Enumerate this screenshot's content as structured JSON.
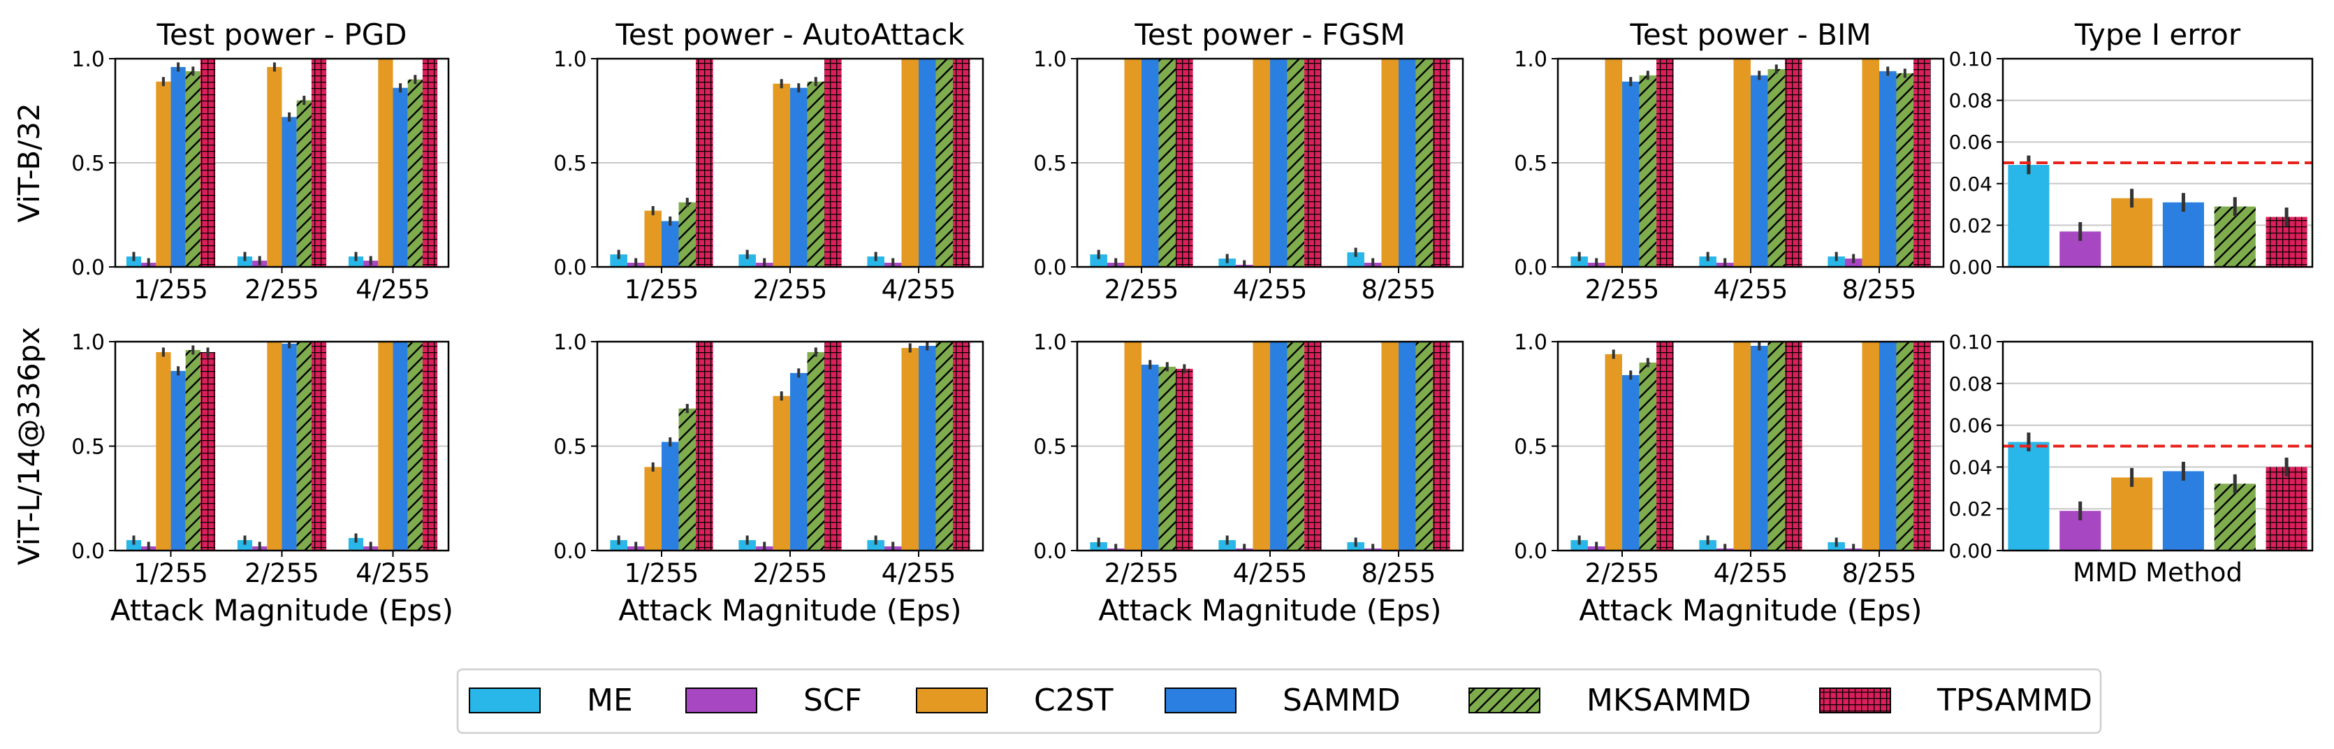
{
  "colors": {
    "ME": "#29B6E8",
    "SCF": "#A847C2",
    "C2ST": "#E49A22",
    "SAMMD": "#2B7FE0",
    "MKSAMMD": "#7FAD4E",
    "TPSAMMD": "#DB1F5A",
    "threshold": "#E8221C",
    "grid": "#c8c8c8"
  },
  "legend": {
    "items": [
      {
        "label": "ME",
        "hatch": "none"
      },
      {
        "label": "SCF",
        "hatch": "none"
      },
      {
        "label": "C2ST",
        "hatch": "none"
      },
      {
        "label": "SAMMD",
        "hatch": "none"
      },
      {
        "label": "MKSAMMD",
        "hatch": "diag"
      },
      {
        "label": "TPSAMMD",
        "hatch": "grid"
      }
    ]
  },
  "row_labels": [
    "ViT-B/32",
    "ViT-L/14@336px"
  ],
  "chart_data": [
    {
      "type": "bar",
      "title": "Test power - PGD",
      "xlabel": "Attack Magnitude (Eps)",
      "ylabel": "ViT-B/32",
      "ylim": [
        0,
        1
      ],
      "yticks": [
        "0.0",
        "0.5",
        "1.0"
      ],
      "categories": [
        "1/255",
        "2/255",
        "4/255"
      ],
      "series": [
        {
          "name": "ME",
          "values": [
            0.05,
            0.05,
            0.05
          ]
        },
        {
          "name": "SCF",
          "values": [
            0.02,
            0.03,
            0.03
          ]
        },
        {
          "name": "C2ST",
          "values": [
            0.89,
            0.96,
            1.0
          ]
        },
        {
          "name": "SAMMD",
          "values": [
            0.96,
            0.72,
            0.86
          ]
        },
        {
          "name": "MKSAMMD",
          "values": [
            0.94,
            0.8,
            0.9
          ]
        },
        {
          "name": "TPSAMMD",
          "values": [
            1.0,
            1.0,
            1.0
          ]
        }
      ]
    },
    {
      "type": "bar",
      "title": "Test power - AutoAttack",
      "xlabel": "Attack Magnitude (Eps)",
      "ylabel": "ViT-B/32",
      "ylim": [
        0,
        1
      ],
      "yticks": [
        "0.0",
        "0.5",
        "1.0"
      ],
      "categories": [
        "1/255",
        "2/255",
        "4/255"
      ],
      "series": [
        {
          "name": "ME",
          "values": [
            0.06,
            0.06,
            0.05
          ]
        },
        {
          "name": "SCF",
          "values": [
            0.02,
            0.02,
            0.02
          ]
        },
        {
          "name": "C2ST",
          "values": [
            0.27,
            0.88,
            1.0
          ]
        },
        {
          "name": "SAMMD",
          "values": [
            0.22,
            0.86,
            1.0
          ]
        },
        {
          "name": "MKSAMMD",
          "values": [
            0.31,
            0.89,
            1.0
          ]
        },
        {
          "name": "TPSAMMD",
          "values": [
            1.0,
            1.0,
            1.0
          ]
        }
      ]
    },
    {
      "type": "bar",
      "title": "Test power - FGSM",
      "xlabel": "Attack Magnitude (Eps)",
      "ylabel": "ViT-B/32",
      "ylim": [
        0,
        1
      ],
      "yticks": [
        "0.0",
        "0.5",
        "1.0"
      ],
      "categories": [
        "2/255",
        "4/255",
        "8/255"
      ],
      "series": [
        {
          "name": "ME",
          "values": [
            0.06,
            0.04,
            0.07
          ]
        },
        {
          "name": "SCF",
          "values": [
            0.02,
            0.01,
            0.02
          ]
        },
        {
          "name": "C2ST",
          "values": [
            1.0,
            1.0,
            1.0
          ]
        },
        {
          "name": "SAMMD",
          "values": [
            1.0,
            1.0,
            1.0
          ]
        },
        {
          "name": "MKSAMMD",
          "values": [
            1.0,
            1.0,
            1.0
          ]
        },
        {
          "name": "TPSAMMD",
          "values": [
            1.0,
            1.0,
            1.0
          ]
        }
      ]
    },
    {
      "type": "bar",
      "title": "Test power - BIM",
      "xlabel": "Attack Magnitude (Eps)",
      "ylabel": "ViT-B/32",
      "ylim": [
        0,
        1
      ],
      "yticks": [
        "0.0",
        "0.5",
        "1.0"
      ],
      "categories": [
        "2/255",
        "4/255",
        "8/255"
      ],
      "series": [
        {
          "name": "ME",
          "values": [
            0.05,
            0.05,
            0.05
          ]
        },
        {
          "name": "SCF",
          "values": [
            0.02,
            0.02,
            0.04
          ]
        },
        {
          "name": "C2ST",
          "values": [
            1.0,
            1.0,
            1.0
          ]
        },
        {
          "name": "SAMMD",
          "values": [
            0.89,
            0.92,
            0.94
          ]
        },
        {
          "name": "MKSAMMD",
          "values": [
            0.92,
            0.95,
            0.93
          ]
        },
        {
          "name": "TPSAMMD",
          "values": [
            1.0,
            1.0,
            1.0
          ]
        }
      ]
    },
    {
      "type": "bar",
      "title": "Type I error",
      "xlabel": "",
      "ylabel": "ViT-B/32",
      "ylim": [
        0,
        0.1
      ],
      "yticks": [
        "0.00",
        "0.02",
        "0.04",
        "0.06",
        "0.08",
        "0.10"
      ],
      "threshold": 0.05,
      "categories": [
        "ME",
        "SCF",
        "C2ST",
        "SAMMD",
        "MKSAMMD",
        "TPSAMMD"
      ],
      "values": [
        0.049,
        0.017,
        0.033,
        0.031,
        0.029,
        0.024
      ]
    },
    {
      "type": "bar",
      "title": "",
      "xlabel": "Attack Magnitude (Eps)",
      "ylabel": "ViT-L/14@336px",
      "ylim": [
        0,
        1
      ],
      "yticks": [
        "0.0",
        "0.5",
        "1.0"
      ],
      "categories": [
        "1/255",
        "2/255",
        "4/255"
      ],
      "series": [
        {
          "name": "ME",
          "values": [
            0.05,
            0.05,
            0.06
          ]
        },
        {
          "name": "SCF",
          "values": [
            0.02,
            0.02,
            0.02
          ]
        },
        {
          "name": "C2ST",
          "values": [
            0.95,
            1.0,
            1.0
          ]
        },
        {
          "name": "SAMMD",
          "values": [
            0.86,
            0.99,
            1.0
          ]
        },
        {
          "name": "MKSAMMD",
          "values": [
            0.96,
            1.0,
            1.0
          ]
        },
        {
          "name": "TPSAMMD",
          "values": [
            0.95,
            1.0,
            1.0
          ]
        }
      ]
    },
    {
      "type": "bar",
      "title": "",
      "xlabel": "Attack Magnitude (Eps)",
      "ylabel": "ViT-L/14@336px",
      "ylim": [
        0,
        1
      ],
      "yticks": [
        "0.0",
        "0.5",
        "1.0"
      ],
      "categories": [
        "1/255",
        "2/255",
        "4/255"
      ],
      "series": [
        {
          "name": "ME",
          "values": [
            0.05,
            0.05,
            0.05
          ]
        },
        {
          "name": "SCF",
          "values": [
            0.02,
            0.02,
            0.02
          ]
        },
        {
          "name": "C2ST",
          "values": [
            0.4,
            0.74,
            0.97
          ]
        },
        {
          "name": "SAMMD",
          "values": [
            0.52,
            0.85,
            0.98
          ]
        },
        {
          "name": "MKSAMMD",
          "values": [
            0.68,
            0.95,
            1.0
          ]
        },
        {
          "name": "TPSAMMD",
          "values": [
            1.0,
            1.0,
            1.0
          ]
        }
      ]
    },
    {
      "type": "bar",
      "title": "",
      "xlabel": "Attack Magnitude (Eps)",
      "ylabel": "ViT-L/14@336px",
      "ylim": [
        0,
        1
      ],
      "yticks": [
        "0.0",
        "0.5",
        "1.0"
      ],
      "categories": [
        "2/255",
        "4/255",
        "8/255"
      ],
      "series": [
        {
          "name": "ME",
          "values": [
            0.04,
            0.05,
            0.04
          ]
        },
        {
          "name": "SCF",
          "values": [
            0.01,
            0.01,
            0.01
          ]
        },
        {
          "name": "C2ST",
          "values": [
            1.0,
            1.0,
            1.0
          ]
        },
        {
          "name": "SAMMD",
          "values": [
            0.89,
            1.0,
            1.0
          ]
        },
        {
          "name": "MKSAMMD",
          "values": [
            0.88,
            1.0,
            1.0
          ]
        },
        {
          "name": "TPSAMMD",
          "values": [
            0.87,
            1.0,
            1.0
          ]
        }
      ]
    },
    {
      "type": "bar",
      "title": "",
      "xlabel": "Attack Magnitude (Eps)",
      "ylabel": "ViT-L/14@336px",
      "ylim": [
        0,
        1
      ],
      "yticks": [
        "0.0",
        "0.5",
        "1.0"
      ],
      "categories": [
        "2/255",
        "4/255",
        "8/255"
      ],
      "series": [
        {
          "name": "ME",
          "values": [
            0.05,
            0.05,
            0.04
          ]
        },
        {
          "name": "SCF",
          "values": [
            0.02,
            0.01,
            0.01
          ]
        },
        {
          "name": "C2ST",
          "values": [
            0.94,
            1.0,
            1.0
          ]
        },
        {
          "name": "SAMMD",
          "values": [
            0.84,
            0.98,
            1.0
          ]
        },
        {
          "name": "MKSAMMD",
          "values": [
            0.9,
            1.0,
            1.0
          ]
        },
        {
          "name": "TPSAMMD",
          "values": [
            1.0,
            1.0,
            1.0
          ]
        }
      ]
    },
    {
      "type": "bar",
      "title": "",
      "xlabel": "MMD Method",
      "ylabel": "ViT-L/14@336px",
      "ylim": [
        0,
        0.1
      ],
      "yticks": [
        "0.00",
        "0.02",
        "0.04",
        "0.06",
        "0.08",
        "0.10"
      ],
      "threshold": 0.05,
      "categories": [
        "ME",
        "SCF",
        "C2ST",
        "SAMMD",
        "MKSAMMD",
        "TPSAMMD"
      ],
      "values": [
        0.052,
        0.019,
        0.035,
        0.038,
        0.032,
        0.04
      ]
    }
  ]
}
